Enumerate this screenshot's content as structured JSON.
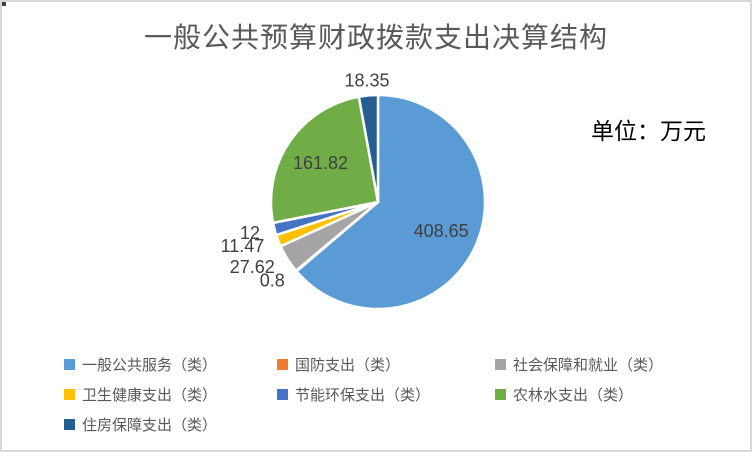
{
  "chart_data": {
    "type": "pie",
    "title": "一般公共预算财政拨款支出决算结构",
    "unit_label": "单位：万元",
    "legend_position": "bottom",
    "title_color": "#595959",
    "data_label_color": "#404040",
    "slice_border_color": "#FFFFFF",
    "series": [
      {
        "name": "一般公共服务（类）",
        "value": 408.65,
        "color": "#5B9BD5"
      },
      {
        "name": "国防支出（类）",
        "value": 0.8,
        "color": "#ED7D31"
      },
      {
        "name": "社会保障和就业（类）",
        "value": 27.62,
        "color": "#A5A5A5"
      },
      {
        "name": "卫生健康支出（类）",
        "value": 11.47,
        "color": "#FFC000"
      },
      {
        "name": "节能环保支出（类）",
        "value": 12,
        "color": "#4472C4"
      },
      {
        "name": "农林水支出（类）",
        "value": 161.82,
        "color": "#70AD47"
      },
      {
        "name": "住房保障支出（类）",
        "value": 18.35,
        "color": "#255E91"
      }
    ]
  }
}
